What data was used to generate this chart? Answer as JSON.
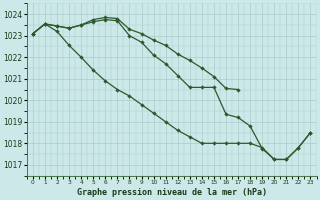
{
  "bg_color": "#cce8e8",
  "grid_color": "#aacccc",
  "line_color": "#2d5a2d",
  "xlabel": "Graphe pression niveau de la mer (hPa)",
  "ylim": [
    1016.5,
    1024.5
  ],
  "yticks": [
    1017,
    1018,
    1019,
    1020,
    1021,
    1022,
    1023,
    1024
  ],
  "xlim": [
    -0.5,
    23.5
  ],
  "x_labels": [
    "0",
    "1",
    "2",
    "3",
    "4",
    "5",
    "6",
    "7",
    "8",
    "9",
    "10",
    "11",
    "12",
    "13",
    "14",
    "15",
    "16",
    "17",
    "18",
    "19",
    "20",
    "21",
    "22",
    "23"
  ],
  "series_upper": [
    1023.1,
    1023.55,
    1023.45,
    1023.35,
    1023.5,
    1023.75,
    1023.85,
    1023.8,
    1023.3,
    1023.1,
    1022.8,
    1022.55,
    1022.15,
    1021.85,
    1021.5,
    1021.1,
    1020.55,
    1020.5,
    null,
    null,
    null,
    null,
    null,
    null
  ],
  "series_mid": [
    1023.1,
    1023.55,
    1023.45,
    1023.35,
    1023.5,
    1023.65,
    1023.75,
    1023.7,
    1023.0,
    1022.7,
    1022.1,
    1021.7,
    1021.15,
    1020.6,
    1020.6,
    1020.6,
    1019.35,
    1019.2,
    1018.8,
    1017.75,
    1017.25,
    1017.25,
    1017.8,
    1018.5
  ],
  "series_lower": [
    1023.1,
    1023.55,
    1023.2,
    1022.55,
    1022.0,
    1021.4,
    1020.9,
    1020.5,
    1020.2,
    1019.8,
    1019.4,
    1019.0,
    1018.6,
    1018.3,
    1018.0,
    1018.0,
    1018.0,
    1018.0,
    1018.0,
    1017.8,
    1017.25,
    1017.25,
    1017.8,
    1018.5
  ]
}
